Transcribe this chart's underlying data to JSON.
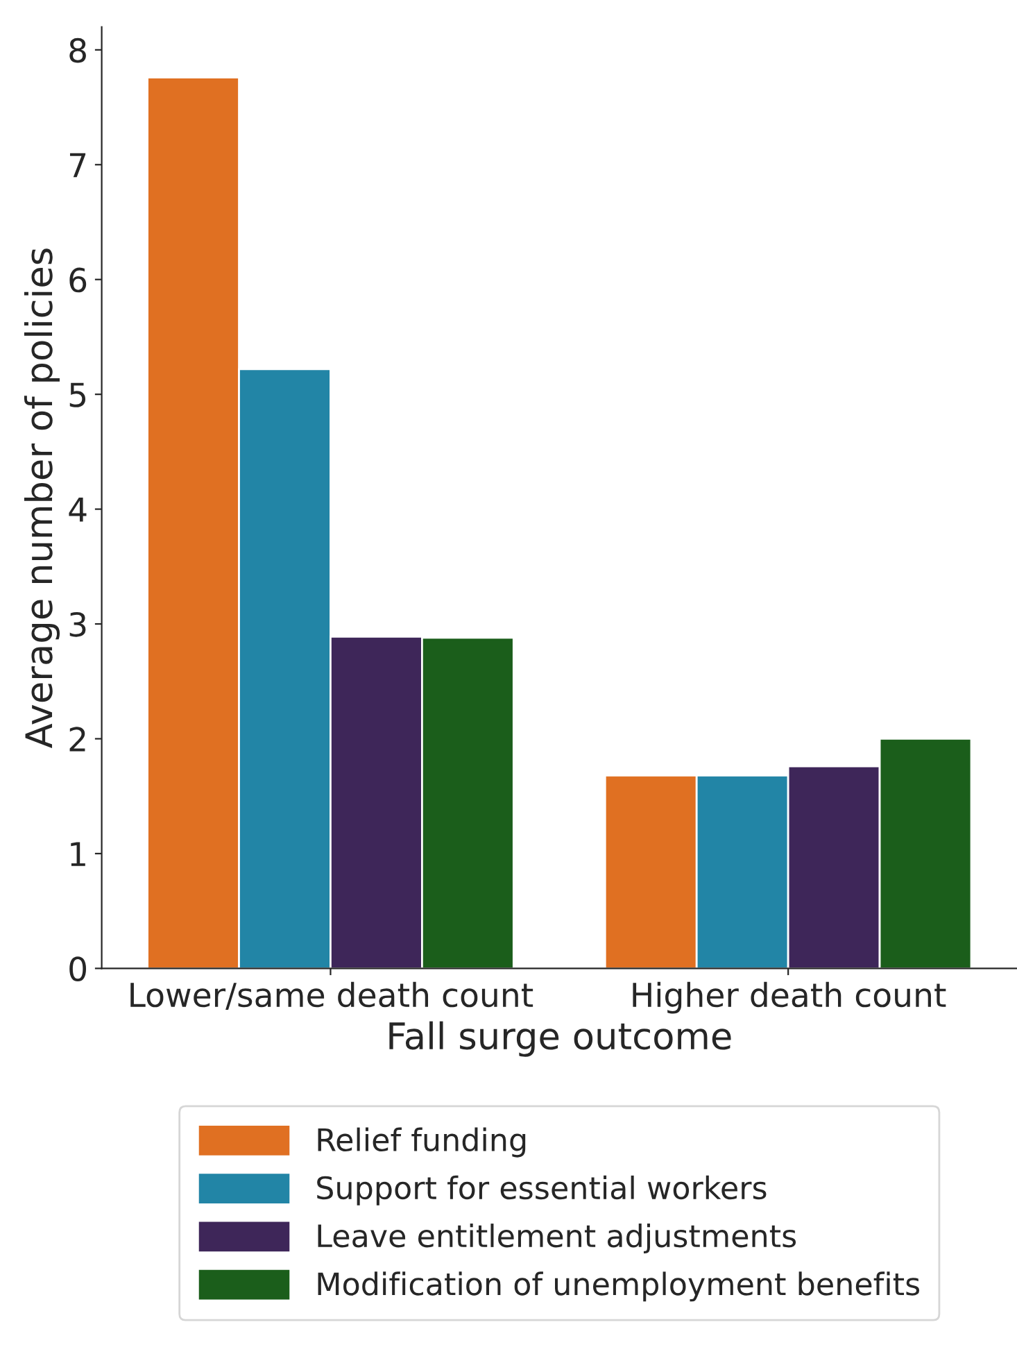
{
  "chart_data": {
    "type": "bar",
    "xlabel": "Fall surge outcome",
    "ylabel": "Average number of policies",
    "categories": [
      "Lower/same death count",
      "Higher death count"
    ],
    "series": [
      {
        "name": "Relief funding",
        "color": "#e07022",
        "values": [
          7.76,
          1.68
        ]
      },
      {
        "name": "Support for essential workers",
        "color": "#2285a6",
        "values": [
          5.22,
          1.68
        ]
      },
      {
        "name": "Leave entitlement adjustments",
        "color": "#3e2659",
        "values": [
          2.89,
          1.76
        ]
      },
      {
        "name": "Modification of unemployment benefits",
        "color": "#1b5e1b",
        "values": [
          2.88,
          2.0
        ]
      }
    ],
    "ylim": [
      0,
      8.2
    ],
    "yticks": [
      0,
      1,
      2,
      3,
      4,
      5,
      6,
      7,
      8
    ],
    "grid": false,
    "legend": "bottom"
  }
}
